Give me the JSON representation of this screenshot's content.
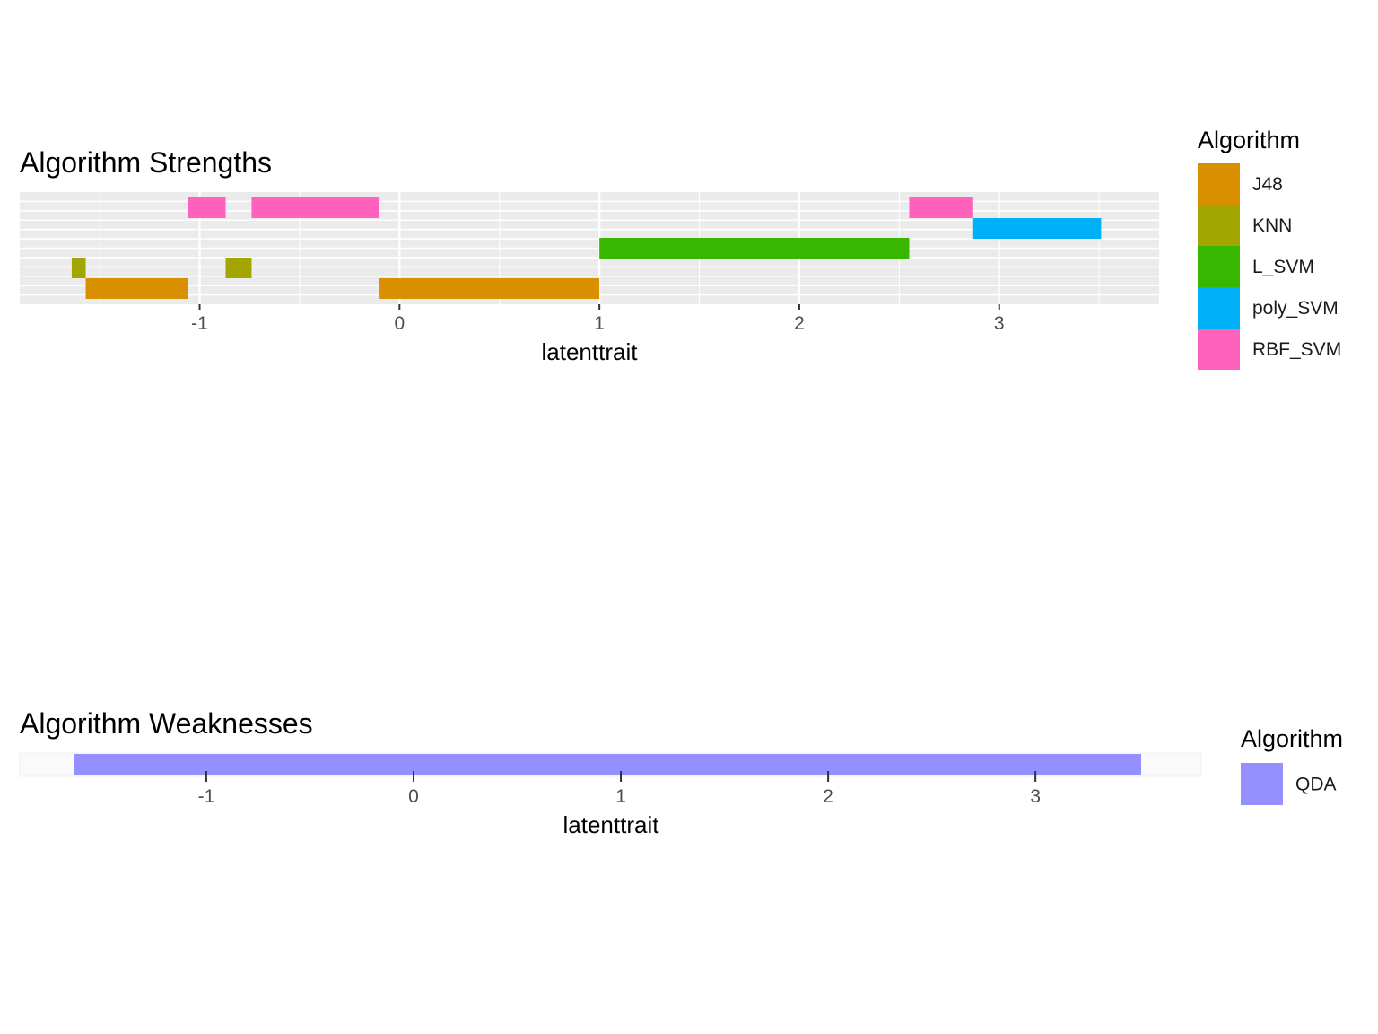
{
  "chart_data": [
    {
      "type": "bar",
      "orientation": "horizontal-ranges",
      "title": "Algorithm Strengths",
      "xlabel": "latenttrait",
      "ylabel": "",
      "xlim": [
        -1.9,
        3.8
      ],
      "xticks": [
        -1,
        0,
        1,
        2,
        3
      ],
      "grid": true,
      "legend": {
        "title": "Algorithm",
        "position": "right"
      },
      "series": [
        {
          "name": "J48",
          "color": "#D89000",
          "segments": [
            [
              -1.57,
              -1.06
            ],
            [
              -0.1,
              1.0
            ]
          ]
        },
        {
          "name": "KNN",
          "color": "#A3A500",
          "segments": [
            [
              -1.64,
              -1.57
            ],
            [
              -0.87,
              -0.74
            ]
          ]
        },
        {
          "name": "L_SVM",
          "color": "#39B600",
          "segments": [
            [
              1.0,
              2.55
            ]
          ]
        },
        {
          "name": "poly_SVM",
          "color": "#00B0F6",
          "segments": [
            [
              2.87,
              3.51
            ]
          ]
        },
        {
          "name": "RBF_SVM",
          "color": "#FF62BC",
          "segments": [
            [
              -1.06,
              -0.87
            ],
            [
              -0.74,
              -0.1
            ],
            [
              2.55,
              2.87
            ]
          ]
        }
      ]
    },
    {
      "type": "bar",
      "orientation": "horizontal-ranges",
      "title": "Algorithm Weaknesses",
      "xlabel": "latenttrait",
      "ylabel": "",
      "xlim": [
        -1.9,
        3.8
      ],
      "xticks": [
        -1,
        0,
        1,
        2,
        3
      ],
      "grid": true,
      "legend": {
        "title": "Algorithm",
        "position": "right"
      },
      "series": [
        {
          "name": "QDA",
          "color": "#9590FF",
          "segments": [
            [
              -1.64,
              3.51
            ]
          ]
        }
      ]
    }
  ]
}
